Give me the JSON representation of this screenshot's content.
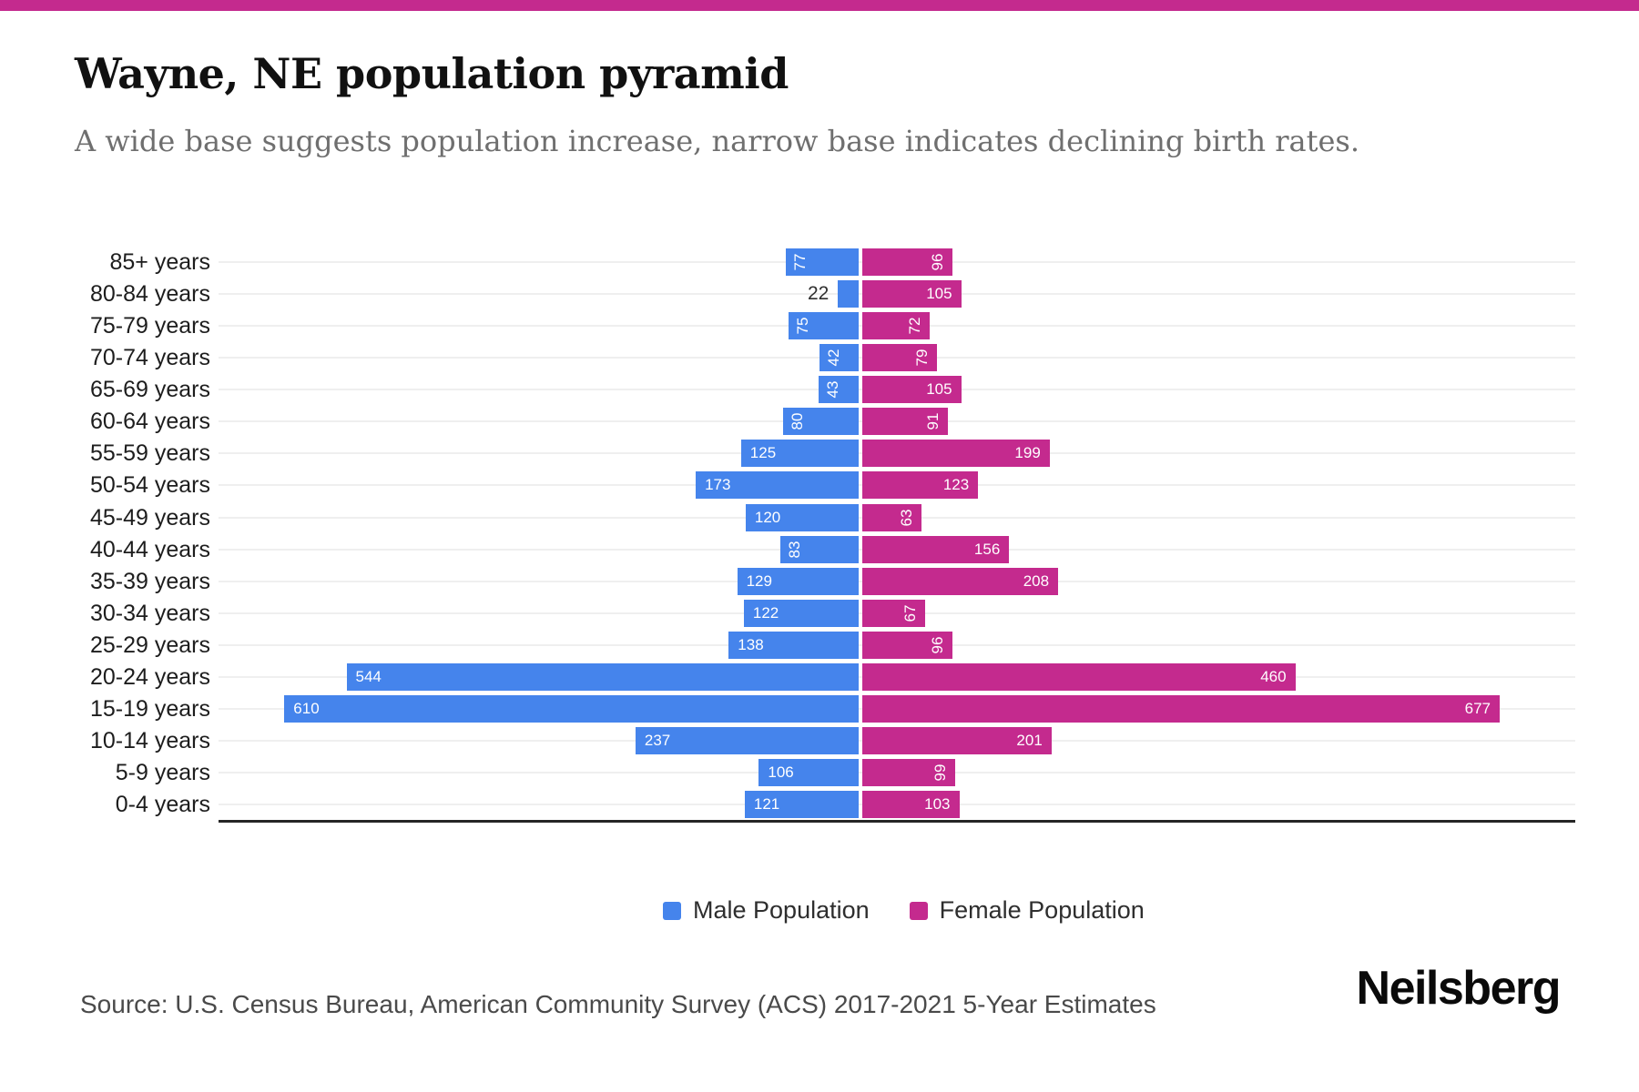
{
  "page": {
    "title": "Wayne, NE population pyramid",
    "subtitle": "A wide base suggests population increase, narrow base indicates declining birth rates.",
    "source": "Source: U.S. Census Bureau, American Community Survey (ACS) 2017-2021 5-Year Estimates",
    "brand": "Neilsberg"
  },
  "legend": {
    "male_label": "Male Population",
    "female_label": "Female Population"
  },
  "colors": {
    "male": "#4584EC",
    "female": "#C42A8E",
    "brand_stripe": "#C42A8E",
    "gridline": "#EFEFEF",
    "axis": "#262626",
    "outside_label": "#2F2F2F"
  },
  "chart_data": {
    "type": "bar",
    "variant": "population-pyramid",
    "title": "Wayne, NE population pyramid",
    "orientation": "horizontal-diverging",
    "categories": [
      "85+ years",
      "80-84 years",
      "75-79 years",
      "70-74 years",
      "65-69 years",
      "60-64 years",
      "55-59 years",
      "50-54 years",
      "45-49 years",
      "40-44 years",
      "35-39 years",
      "30-34 years",
      "25-29 years",
      "20-24 years",
      "15-19 years",
      "10-14 years",
      "5-9 years",
      "0-4 years"
    ],
    "series": [
      {
        "name": "Male Population",
        "side": "left",
        "color": "#4584EC",
        "values": [
          77,
          22,
          75,
          42,
          43,
          80,
          125,
          173,
          120,
          83,
          129,
          122,
          138,
          544,
          610,
          237,
          106,
          121
        ]
      },
      {
        "name": "Female Population",
        "side": "right",
        "color": "#C42A8E",
        "values": [
          96,
          105,
          72,
          79,
          105,
          91,
          199,
          123,
          63,
          156,
          208,
          67,
          96,
          460,
          677,
          201,
          99,
          103
        ]
      }
    ],
    "data_label_orientation": {
      "male": [
        "v",
        "out",
        "v",
        "v",
        "v",
        "v",
        "h",
        "h",
        "h",
        "v",
        "h",
        "h",
        "h",
        "h",
        "h",
        "h",
        "h",
        "h"
      ],
      "female": [
        "v",
        "h",
        "v",
        "v",
        "h",
        "v",
        "h",
        "h",
        "v",
        "h",
        "h",
        "v",
        "v",
        "h",
        "h",
        "h",
        "v",
        "h"
      ]
    },
    "value_axis_hidden": true,
    "grid": "horizontal",
    "legend_position": "bottom",
    "xlabel": "",
    "ylabel": ""
  }
}
